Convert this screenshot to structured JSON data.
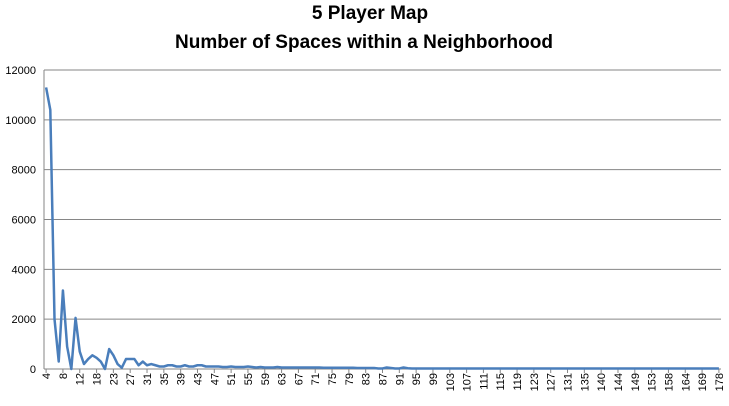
{
  "chart_data": {
    "type": "line",
    "title": [
      "5 Player Map",
      "Number of Spaces within a Neighborhood"
    ],
    "categories": [
      "4",
      null,
      null,
      null,
      "8",
      null,
      null,
      null,
      "12",
      null,
      null,
      null,
      "18",
      null,
      null,
      null,
      "23",
      null,
      null,
      null,
      "27",
      null,
      null,
      null,
      "31",
      null,
      null,
      null,
      "35",
      null,
      null,
      null,
      "39",
      null,
      null,
      null,
      "43",
      null,
      null,
      null,
      "47",
      null,
      null,
      null,
      "51",
      null,
      null,
      null,
      "55",
      null,
      null,
      null,
      "59",
      null,
      null,
      null,
      "63",
      null,
      null,
      null,
      "67",
      null,
      null,
      null,
      "71",
      null,
      null,
      null,
      "75",
      null,
      null,
      null,
      "79",
      null,
      null,
      null,
      "83",
      null,
      null,
      null,
      "87",
      null,
      null,
      null,
      "91",
      null,
      null,
      null,
      "95",
      null,
      null,
      null,
      "99",
      null,
      null,
      null,
      "103",
      null,
      null,
      null,
      "107",
      null,
      null,
      null,
      "111",
      null,
      null,
      null,
      "115",
      null,
      null,
      null,
      "119",
      null,
      null,
      null,
      "123",
      null,
      null,
      null,
      "127",
      null,
      null,
      null,
      "131",
      null,
      null,
      null,
      "135",
      null,
      null,
      null,
      "140",
      null,
      null,
      null,
      "144",
      null,
      null,
      null,
      "149",
      null,
      null,
      null,
      "153",
      null,
      null,
      null,
      "158",
      null,
      null,
      null,
      "164",
      null,
      null,
      null,
      "169",
      null,
      null,
      null,
      "178"
    ],
    "values": [
      11300,
      10400,
      2000,
      300,
      3150,
      900,
      0,
      2050,
      700,
      200,
      400,
      550,
      450,
      300,
      0,
      800,
      550,
      200,
      50,
      400,
      400,
      400,
      150,
      300,
      150,
      200,
      150,
      100,
      100,
      150,
      150,
      100,
      100,
      150,
      100,
      100,
      150,
      150,
      100,
      100,
      100,
      100,
      80,
      80,
      100,
      80,
      80,
      80,
      100,
      80,
      60,
      80,
      60,
      60,
      60,
      80,
      60,
      60,
      60,
      60,
      60,
      60,
      60,
      60,
      60,
      60,
      50,
      50,
      50,
      50,
      50,
      50,
      50,
      50,
      40,
      40,
      40,
      40,
      40,
      20,
      20,
      60,
      40,
      20,
      20,
      60,
      30,
      20,
      20,
      20,
      20,
      20,
      20,
      20,
      20,
      20,
      20,
      20,
      20,
      20,
      20,
      20,
      20,
      20,
      20,
      20,
      20,
      20,
      20,
      20,
      20,
      20,
      20,
      20,
      20,
      20,
      20,
      20,
      20,
      20,
      20,
      20,
      20,
      20,
      20,
      20,
      20,
      20,
      20,
      20,
      20,
      20,
      20,
      20,
      20,
      20,
      20,
      20,
      20,
      20,
      20,
      20,
      20,
      20,
      20,
      20,
      20,
      20,
      20,
      20,
      20,
      20,
      20,
      20,
      20,
      20,
      20,
      20,
      20,
      20,
      20
    ],
    "color": "#4a7ebb",
    "ylim": [
      0,
      12000
    ],
    "yticks": [
      0,
      2000,
      4000,
      6000,
      8000,
      10000,
      12000
    ],
    "grid": true
  }
}
